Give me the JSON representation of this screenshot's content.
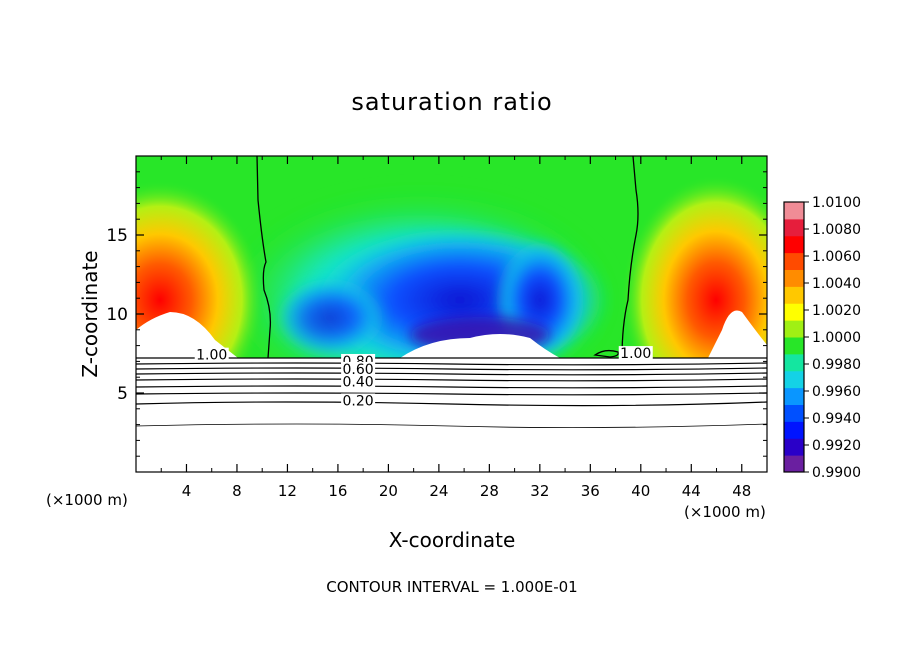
{
  "chart_data": {
    "type": "heatmap",
    "title": "saturation ratio",
    "xlabel": "X-coordinate",
    "ylabel": "Z-coordinate",
    "x_unit": "(×1000 m)",
    "xlim": [
      0,
      50
    ],
    "ylim": [
      0,
      20
    ],
    "x_ticks": [
      4,
      8,
      12,
      16,
      20,
      24,
      28,
      32,
      36,
      40,
      44,
      48
    ],
    "y_ticks": [
      5,
      10,
      15
    ],
    "colorbar": {
      "min": 0.99,
      "max": 1.01,
      "labels": [
        "1.0100",
        "1.0080",
        "1.0060",
        "1.0040",
        "1.0020",
        "1.0000",
        "0.9980",
        "0.9960",
        "0.9940",
        "0.9920",
        "0.9900"
      ],
      "colors": [
        "#6a1fa0",
        "#2a00c8",
        "#0014ff",
        "#0050ff",
        "#0a96ff",
        "#14d2e6",
        "#14e6a0",
        "#28e628",
        "#a0f014",
        "#ffff00",
        "#ffc800",
        "#ff8c00",
        "#ff4b00",
        "#ff0000",
        "#e61e3c",
        "#f08c96"
      ]
    },
    "contour_labels": [
      {
        "text": "1.00",
        "x": 6.0,
        "z": 7.3
      },
      {
        "text": "1.00",
        "x": 39.6,
        "z": 7.4
      },
      {
        "text": "0.80",
        "x": 17.6,
        "z": 6.9
      },
      {
        "text": "0.60",
        "x": 17.6,
        "z": 6.4
      },
      {
        "text": "0.40",
        "x": 17.6,
        "z": 5.6
      },
      {
        "text": "0.20",
        "x": 17.6,
        "z": 4.4
      }
    ],
    "contour_interval_text": "CONTOUR INTERVAL = 1.000E-01"
  }
}
